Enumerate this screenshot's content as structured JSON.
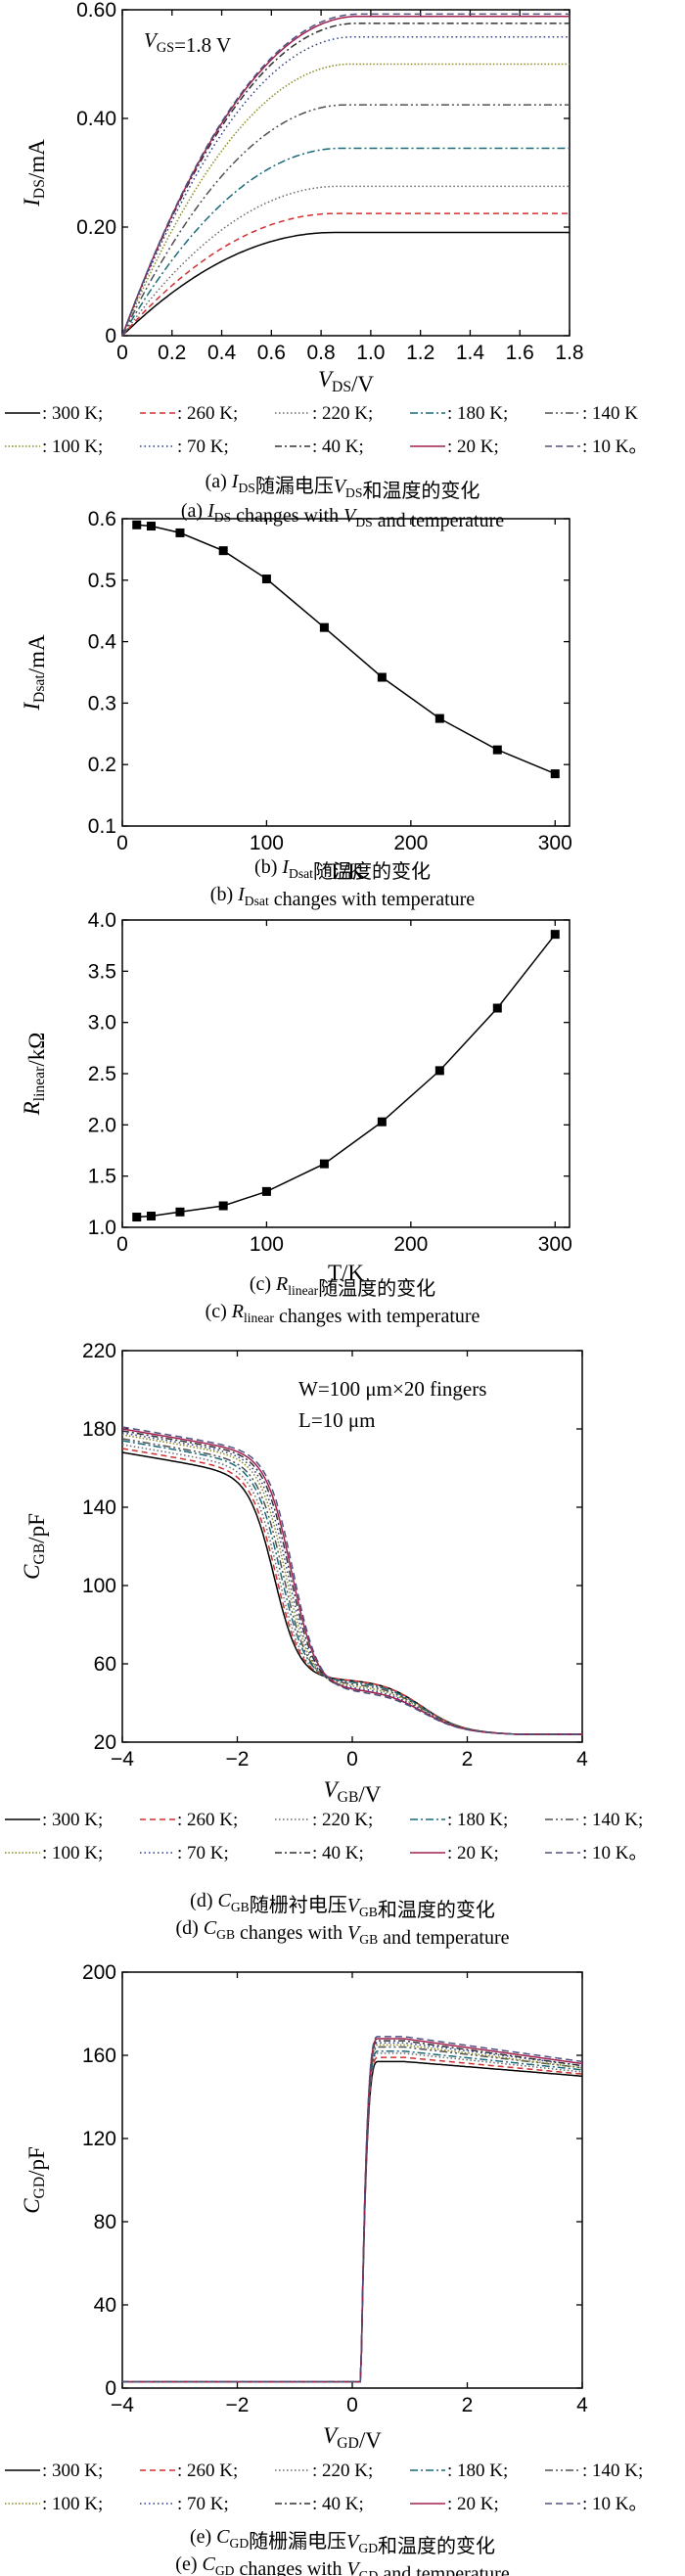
{
  "chart_data": [
    {
      "id": "a",
      "type": "line",
      "annotation": "V_GS=1.8 V",
      "xlabel": "V_DS/V",
      "ylabel": "I_DS/mA",
      "xlim": [
        0,
        1.8
      ],
      "ylim": [
        0,
        0.6
      ],
      "xticks": [
        "0",
        "0.2",
        "0.4",
        "0.6",
        "0.8",
        "1.0",
        "1.2",
        "1.4",
        "1.6",
        "1.8"
      ],
      "yticks": [
        "0",
        "0.20",
        "0.40",
        "0.60"
      ],
      "model": "saturation curves: I = Isat*(2u-u^2) for u=V/Vsat<1",
      "series": [
        {
          "name": ": 300 K;",
          "Isat": 0.19,
          "Vsat": 0.85,
          "color": "#000000",
          "dash": ""
        },
        {
          "name": ": 260 K;",
          "Isat": 0.225,
          "Vsat": 0.86,
          "color": "#d03030",
          "dash": "6,4"
        },
        {
          "name": ": 220 K;",
          "Isat": 0.275,
          "Vsat": 0.87,
          "color": "#6a6a6a",
          "dash": "1.5,2.5"
        },
        {
          "name": ": 180 K;",
          "Isat": 0.345,
          "Vsat": 0.88,
          "color": "#1a6a7a",
          "dash": "8,3,2,3"
        },
        {
          "name": ": 140 K",
          "Isat": 0.425,
          "Vsat": 0.9,
          "color": "#505050",
          "dash": "8,3,2,3,2,3"
        },
        {
          "name": ": 100 K;",
          "Isat": 0.5,
          "Vsat": 0.92,
          "color": "#8a8a20",
          "dash": "1.5,2"
        },
        {
          "name": ": 70 K;",
          "Isat": 0.55,
          "Vsat": 0.93,
          "color": "#2a3a8a",
          "dash": "1.5,3"
        },
        {
          "name": ": 40 K;",
          "Isat": 0.575,
          "Vsat": 0.94,
          "color": "#303030",
          "dash": "7,3,2,3"
        },
        {
          "name": ": 20 K;",
          "Isat": 0.588,
          "Vsat": 0.95,
          "color": "#a02050",
          "dash": ""
        },
        {
          "name": ": 10 K。",
          "Isat": 0.592,
          "Vsat": 0.95,
          "color": "#505080",
          "dash": "7,4"
        }
      ],
      "caption_cn": "(a) I_DS随漏电压V_DS和温度的变化",
      "caption_en": "(a) I_DS changes with V_DS and temperature"
    },
    {
      "id": "b",
      "type": "line",
      "xlabel": "T/K",
      "ylabel": "I_Dsat/mA",
      "xlim": [
        0,
        310
      ],
      "ylim": [
        0.1,
        0.6
      ],
      "xticks": [
        "0",
        "100",
        "200",
        "300"
      ],
      "yticks": [
        "0.1",
        "0.2",
        "0.3",
        "0.4",
        "0.5",
        "0.6"
      ],
      "x": [
        10,
        20,
        40,
        70,
        100,
        140,
        180,
        220,
        260,
        300
      ],
      "y": [
        0.59,
        0.588,
        0.577,
        0.548,
        0.502,
        0.423,
        0.342,
        0.275,
        0.224,
        0.185
      ],
      "caption_cn": "(b) I_Dsat随温度的变化",
      "caption_en": "(b) I_Dsat changes with temperature"
    },
    {
      "id": "c",
      "type": "line",
      "xlabel": "T/K",
      "ylabel": "R_linear/kΩ",
      "xlim": [
        0,
        310
      ],
      "ylim": [
        1.0,
        4.0
      ],
      "xticks": [
        "0",
        "100",
        "200",
        "300"
      ],
      "yticks": [
        "1.0",
        "1.5",
        "2.0",
        "2.5",
        "3.0",
        "3.5",
        "4.0"
      ],
      "x": [
        10,
        20,
        40,
        70,
        100,
        140,
        180,
        220,
        260,
        300
      ],
      "y": [
        1.1,
        1.11,
        1.15,
        1.21,
        1.35,
        1.62,
        2.03,
        2.53,
        3.14,
        3.86
      ],
      "caption_cn": "(c) R_linear随温度的变化",
      "caption_en": "(c) R_linear changes with temperature"
    },
    {
      "id": "d",
      "type": "line",
      "annotation_1": "W=100 μm×20 fingers",
      "annotation_2": "L=10 μm",
      "xlabel": "V_GB/V",
      "ylabel": "C_GB/pF",
      "xlim": [
        -4,
        4
      ],
      "ylim": [
        20,
        220
      ],
      "xticks": [
        "−4",
        "−2",
        "0",
        "2",
        "4"
      ],
      "yticks": [
        "20",
        "60",
        "100",
        "140",
        "180",
        "220"
      ],
      "series": [
        {
          "name": ": 300 K;",
          "Ctop": 168,
          "Vmid": -1.35,
          "Cplat": 52,
          "color": "#000000",
          "dash": ""
        },
        {
          "name": ": 260 K;",
          "Ctop": 170,
          "Vmid": -1.32,
          "Cplat": 52,
          "color": "#d03030",
          "dash": "6,4"
        },
        {
          "name": ": 220 K;",
          "Ctop": 172,
          "Vmid": -1.28,
          "Cplat": 51,
          "color": "#6a6a6a",
          "dash": "1.5,2.5"
        },
        {
          "name": ": 180 K;",
          "Ctop": 174,
          "Vmid": -1.24,
          "Cplat": 51,
          "color": "#1a6a7a",
          "dash": "8,3,2,3"
        },
        {
          "name": ": 140 K;",
          "Ctop": 175,
          "Vmid": -1.2,
          "Cplat": 50,
          "color": "#505050",
          "dash": "8,3,2,3,2,3"
        },
        {
          "name": ": 100 K;",
          "Ctop": 177,
          "Vmid": -1.16,
          "Cplat": 49,
          "color": "#8a8a20",
          "dash": "1.5,2"
        },
        {
          "name": ": 70 K;",
          "Ctop": 178,
          "Vmid": -1.12,
          "Cplat": 48,
          "color": "#2a3a8a",
          "dash": "1.5,3"
        },
        {
          "name": ": 40 K;",
          "Ctop": 179,
          "Vmid": -1.08,
          "Cplat": 47,
          "color": "#303030",
          "dash": "7,3,2,3"
        },
        {
          "name": ": 20 K;",
          "Ctop": 180,
          "Vmid": -1.05,
          "Cplat": 47,
          "color": "#a02050",
          "dash": ""
        },
        {
          "name": ": 10 K。",
          "Ctop": 181,
          "Vmid": -1.02,
          "Cplat": 46,
          "color": "#505080",
          "dash": "7,4"
        }
      ],
      "caption_cn": "(d) C_GB随栅衬电压V_GB和温度的变化",
      "caption_en": "(d) C_GB changes with V_GB and temperature"
    },
    {
      "id": "e",
      "type": "line",
      "xlabel": "V_GD/V",
      "ylabel": "C_GD/pF",
      "xlim": [
        -4,
        4
      ],
      "ylim": [
        0,
        200
      ],
      "xticks": [
        "−4",
        "−2",
        "0",
        "2",
        "4"
      ],
      "yticks": [
        "0",
        "40",
        "80",
        "120",
        "160",
        "200"
      ],
      "series": [
        {
          "name": ": 300 K;",
          "Cpeak": 157,
          "Cend": 150,
          "color": "#000000",
          "dash": ""
        },
        {
          "name": ": 260 K;",
          "Cpeak": 159,
          "Cend": 151,
          "color": "#d03030",
          "dash": "6,4"
        },
        {
          "name": ": 220 K;",
          "Cpeak": 161,
          "Cend": 152,
          "color": "#6a6a6a",
          "dash": "1.5,2.5"
        },
        {
          "name": ": 180 K;",
          "Cpeak": 162,
          "Cend": 153,
          "color": "#1a6a7a",
          "dash": "8,3,2,3"
        },
        {
          "name": ": 140 K;",
          "Cpeak": 164,
          "Cend": 154,
          "color": "#505050",
          "dash": "8,3,2,3,2,3"
        },
        {
          "name": ": 100 K;",
          "Cpeak": 165,
          "Cend": 154,
          "color": "#8a8a20",
          "dash": "1.5,2"
        },
        {
          "name": ": 70 K;",
          "Cpeak": 166,
          "Cend": 155,
          "color": "#2a3a8a",
          "dash": "1.5,3"
        },
        {
          "name": ": 40 K;",
          "Cpeak": 167,
          "Cend": 155,
          "color": "#303030",
          "dash": "7,3,2,3"
        },
        {
          "name": ": 20 K;",
          "Cpeak": 168,
          "Cend": 156,
          "color": "#a02050",
          "dash": ""
        },
        {
          "name": ": 10 K。",
          "Cpeak": 169,
          "Cend": 157,
          "color": "#505080",
          "dash": "7,4"
        }
      ],
      "caption_cn": "(e) C_GD随栅漏电压V_GD和温度的变化",
      "caption_en": "(e) C_GD changes with V_GD and temperature"
    }
  ]
}
